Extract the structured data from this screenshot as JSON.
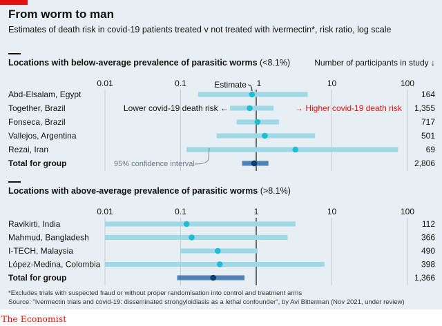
{
  "title": "From worm to man",
  "subtitle": "Estimates of death risk in covid-19 patients treated v not treated with ivermectin*, risk ratio, log scale",
  "participants_header": "Number of participants in study",
  "participants_arrow": "↓",
  "footnote": "*Excludes trials with suspected fraud or without proper randomisation into control and treatment arms",
  "source": "Source: \"Ivermectin trials and covid-19: disseminated strongyloidiasis as a lethal confounder\", by Avi Bitterman (Nov 2021, under review)",
  "brand": "The Economist",
  "colors": {
    "background": "#e7eff4",
    "ci_bar": "#9fd9e6",
    "point": "#1fbcd2",
    "total_bar": "#4f83b6",
    "total_point": "#0e3f6e",
    "accent_red": "#e3120b",
    "grey_text": "#6b7a85"
  },
  "chart_data": [
    {
      "type": "forest",
      "title": "Locations with below-average prevalence of parasitic worms",
      "title_note": "(<8.1%)",
      "scale": "log",
      "xlim": [
        0.01,
        100
      ],
      "ticks": [
        0.01,
        0.1,
        1,
        10,
        100
      ],
      "tick_labels": [
        "0.01",
        "0.1",
        "1",
        "10",
        "100"
      ],
      "annotations": {
        "estimate": "Estimate",
        "lower": "Lower covid-19 death risk ←",
        "higher": "→ Higher covid-19 death risk",
        "ci": "95% confidence interval"
      },
      "rows": [
        {
          "study": "Abd-Elsalam",
          "location": ", Egypt",
          "estimate": 0.88,
          "low": 0.17,
          "high": 4.8,
          "participants": "164"
        },
        {
          "study": "Together",
          "location": ", Brazil",
          "estimate": 0.82,
          "low": 0.45,
          "high": 1.7,
          "participants": "1,355"
        },
        {
          "study": "Fonseca",
          "location": ", Brazil",
          "estimate": 1.04,
          "low": 0.55,
          "high": 2.0,
          "participants": "717"
        },
        {
          "study": "Vallejos",
          "location": ", Argentina",
          "estimate": 1.3,
          "low": 0.3,
          "high": 6.0,
          "participants": "501"
        },
        {
          "study": "Rezai",
          "location": ", Iran",
          "estimate": 3.3,
          "low": 0.12,
          "high": 75,
          "participants": "69"
        }
      ],
      "total": {
        "label": "Total for group",
        "estimate": 0.94,
        "low": 0.65,
        "high": 1.45,
        "participants": "2,806"
      }
    },
    {
      "type": "forest",
      "title": "Locations with above-average prevalence of parasitic worms",
      "title_note": "(>8.1%)",
      "scale": "log",
      "xlim": [
        0.01,
        100
      ],
      "ticks": [
        0.01,
        0.1,
        1,
        10,
        100
      ],
      "tick_labels": [
        "0.01",
        "0.1",
        "1",
        "10",
        "100"
      ],
      "rows": [
        {
          "study": "Ravikirti",
          "location": ", India",
          "estimate": 0.12,
          "low": 0.01,
          "high": 3.3,
          "participants": "112"
        },
        {
          "study": "Mahmud",
          "location": ", Bangladesh",
          "estimate": 0.14,
          "low": 0.01,
          "high": 2.6,
          "participants": "366"
        },
        {
          "study": "I-TECH",
          "location": ", Malaysia",
          "estimate": 0.31,
          "low": 0.1,
          "high": 1.05,
          "participants": "490"
        },
        {
          "study": "López-Medina",
          "location": ", Colombia",
          "estimate": 0.33,
          "low": 0.01,
          "high": 8.0,
          "participants": "398"
        }
      ],
      "total": {
        "label": "Total for group",
        "estimate": 0.27,
        "low": 0.09,
        "high": 0.7,
        "participants": "1,366"
      }
    }
  ]
}
